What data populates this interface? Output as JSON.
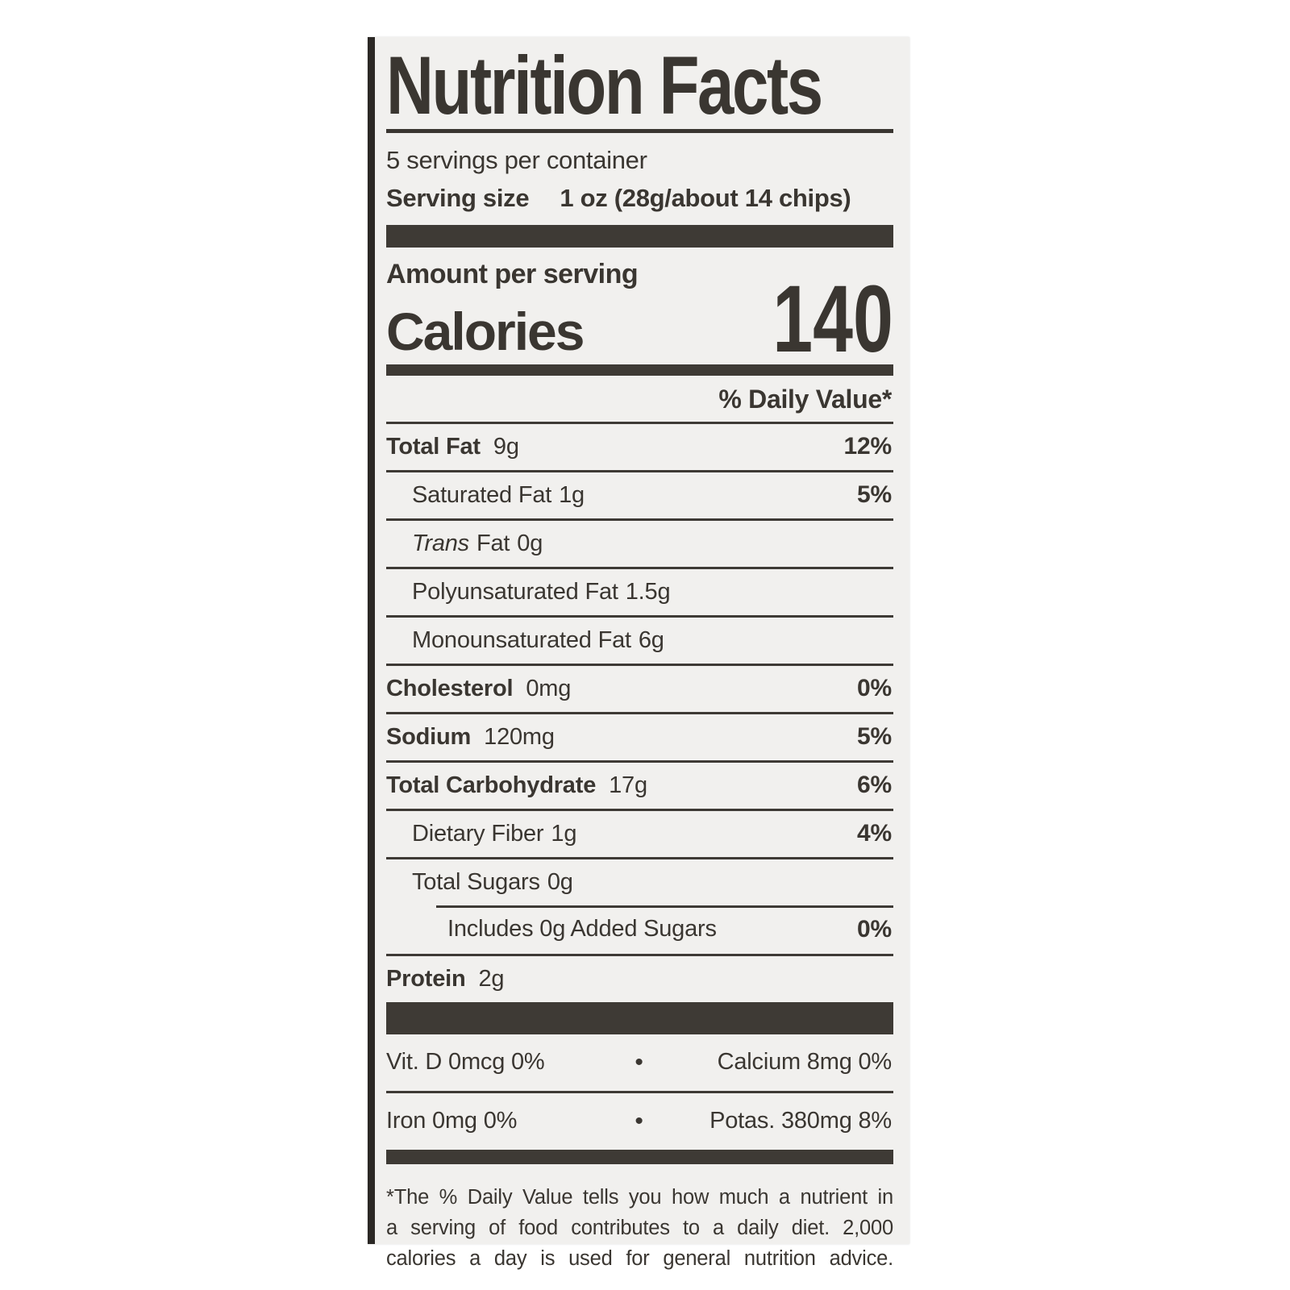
{
  "label": {
    "title": "Nutrition Facts",
    "servings_per_container": "5 servings per container",
    "serving_size": {
      "label": "Serving size",
      "value": "1 oz (28g/about 14 chips)"
    },
    "amount_per_serving": "Amount per serving",
    "calories": {
      "label": "Calories",
      "value": "140"
    },
    "daily_value_header": "% Daily Value*",
    "nutrients": [
      {
        "name": "Total Fat",
        "amount": "9g",
        "daily_value": "12%"
      },
      {
        "name": "Saturated Fat",
        "amount": "1g",
        "daily_value": "5%"
      },
      {
        "name_italic": "Trans",
        "name": "Fat",
        "amount": "0g",
        "daily_value": ""
      },
      {
        "name": "Polyunsaturated Fat",
        "amount": "1.5g",
        "daily_value": ""
      },
      {
        "name": "Monounsaturated Fat",
        "amount": "6g",
        "daily_value": ""
      },
      {
        "name": "Cholesterol",
        "amount": "0mg",
        "daily_value": "0%"
      },
      {
        "name": "Sodium",
        "amount": "120mg",
        "daily_value": "5%"
      },
      {
        "name": "Total Carbohydrate",
        "amount": "17g",
        "daily_value": "6%"
      },
      {
        "name": "Dietary Fiber",
        "amount": "1g",
        "daily_value": "4%"
      },
      {
        "name": "Total Sugars",
        "amount": "0g",
        "daily_value": ""
      },
      {
        "name": "Includes 0g Added Sugars",
        "amount": "",
        "daily_value": "0%"
      },
      {
        "name": "Protein",
        "amount": "2g",
        "daily_value": ""
      }
    ],
    "micronutrients": {
      "separator": "•",
      "rows": [
        {
          "left": "Vit. D 0mcg 0%",
          "right": "Calcium 8mg 0%"
        },
        {
          "left": "Iron 0mg 0%",
          "right": "Potas. 380mg 8%"
        }
      ]
    },
    "footnote_lines": [
      "*The % Daily Value tells you how much a nutrient in",
      "a serving of food contributes to a daily diet. 2,000",
      "calories a day is used for general nutrition advice."
    ],
    "colors": {
      "ink": "#3a3631",
      "panel_bg": "#f1f0ee",
      "edge": "#2b2825"
    }
  }
}
